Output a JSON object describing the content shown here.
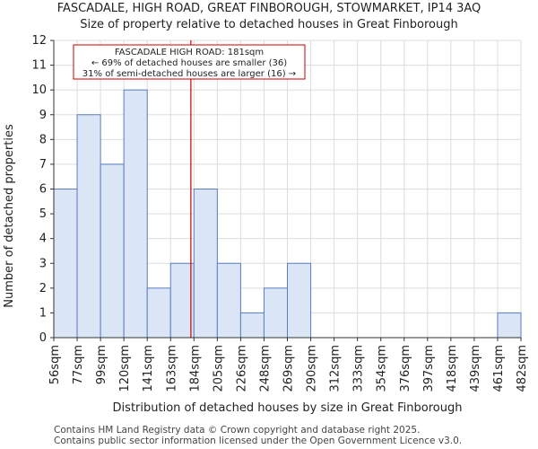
{
  "title_line1": "FASCADALE, HIGH ROAD, GREAT FINBOROUGH, STOWMARKET, IP14 3AQ",
  "title_line2": "Size of property relative to detached houses in Great Finborough",
  "footer_line1": "Contains HM Land Registry data © Crown copyright and database right 2025.",
  "footer_line2": "Contains public sector information licensed under the Open Government Licence v3.0.",
  "chart_data": {
    "type": "bar",
    "xlabel": "Distribution of detached houses by size in Great Finborough",
    "ylabel": "Number of detached properties",
    "bin_edges": [
      56,
      77,
      99,
      120,
      141,
      163,
      184,
      205,
      226,
      248,
      269,
      290,
      312,
      333,
      354,
      376,
      397,
      418,
      439,
      461,
      482
    ],
    "tick_labels": [
      "56sqm",
      "77sqm",
      "99sqm",
      "120sqm",
      "141sqm",
      "163sqm",
      "184sqm",
      "205sqm",
      "226sqm",
      "248sqm",
      "269sqm",
      "290sqm",
      "312sqm",
      "333sqm",
      "354sqm",
      "376sqm",
      "397sqm",
      "418sqm",
      "439sqm",
      "461sqm",
      "482sqm"
    ],
    "values": [
      6,
      9,
      7,
      10,
      2,
      3,
      6,
      3,
      1,
      2,
      3,
      0,
      0,
      0,
      0,
      0,
      0,
      0,
      0,
      1
    ],
    "ylim": [
      0,
      12
    ],
    "yticks": [
      0,
      1,
      2,
      3,
      4,
      5,
      6,
      7,
      8,
      9,
      10,
      11,
      12
    ],
    "marker": {
      "value": 181,
      "label_lines": [
        "FASCADALE HIGH ROAD: 181sqm",
        "← 69% of detached houses are smaller (36)",
        "31% of semi-detached houses are larger (16) →"
      ]
    },
    "colors": {
      "bar_fill": "#dae5f5",
      "bar_edge": "#5a7fbf",
      "marker": "#cc0000",
      "grid": "#dddddd"
    }
  }
}
